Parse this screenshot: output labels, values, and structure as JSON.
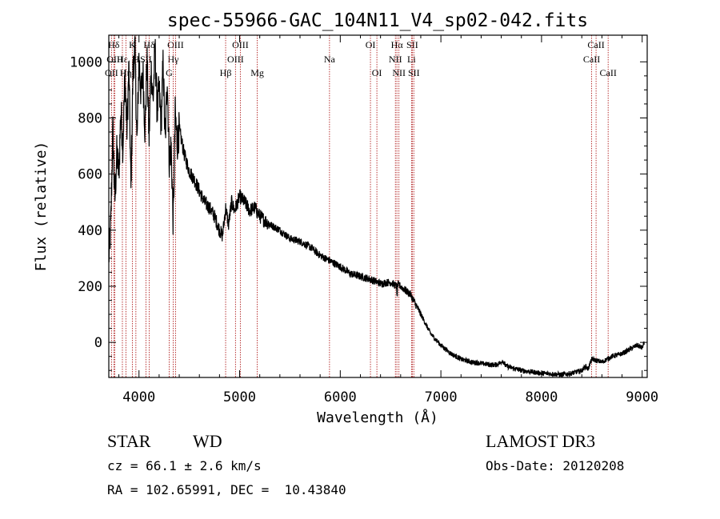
{
  "chart_data": {
    "type": "line",
    "title": "spec-55966-GAC_104N11_V4_sp02-042.fits",
    "xlabel": "Wavelength (Å)",
    "ylabel": "Flux (relative)",
    "xlim": [
      3700,
      9050
    ],
    "ylim": [
      -125,
      1095
    ],
    "x_ticks": [
      4000,
      5000,
      6000,
      7000,
      8000,
      9000
    ],
    "y_ticks": [
      0,
      200,
      400,
      600,
      800,
      1000
    ],
    "grid": false,
    "series": [
      {
        "name": "flux",
        "x": [
          3700,
          3720,
          3740,
          3760,
          3780,
          3800,
          3820,
          3840,
          3860,
          3880,
          3900,
          3920,
          3940,
          3960,
          3980,
          4000,
          4020,
          4040,
          4060,
          4080,
          4100,
          4120,
          4140,
          4160,
          4180,
          4200,
          4220,
          4240,
          4260,
          4280,
          4300,
          4320,
          4340,
          4360,
          4380,
          4400,
          4450,
          4500,
          4550,
          4600,
          4650,
          4700,
          4750,
          4800,
          4830,
          4861,
          4890,
          4920,
          4950,
          5000,
          5050,
          5100,
          5150,
          5200,
          5300,
          5400,
          5500,
          5600,
          5700,
          5800,
          5900,
          6000,
          6100,
          6200,
          6300,
          6400,
          6500,
          6560,
          6563,
          6570,
          6600,
          6700,
          6800,
          6900,
          7000,
          7100,
          7200,
          7300,
          7400,
          7500,
          7550,
          7600,
          7610,
          7650,
          7700,
          7800,
          7900,
          8000,
          8100,
          8200,
          8300,
          8400,
          8440,
          8460,
          8500,
          8600,
          8700,
          8800,
          8900,
          8950,
          9000,
          9020
        ],
        "y": [
          300,
          420,
          760,
          500,
          680,
          600,
          830,
          700,
          950,
          760,
          980,
          540,
          960,
          1050,
          700,
          1020,
          880,
          960,
          750,
          1010,
          720,
          980,
          860,
          1050,
          820,
          900,
          780,
          1000,
          700,
          960,
          650,
          700,
          420,
          810,
          710,
          760,
          670,
          610,
          580,
          540,
          500,
          480,
          450,
          400,
          380,
          480,
          420,
          500,
          470,
          520,
          500,
          470,
          480,
          450,
          420,
          400,
          370,
          360,
          340,
          310,
          290,
          270,
          245,
          235,
          225,
          210,
          215,
          200,
          150,
          205,
          200,
          170,
          100,
          30,
          -10,
          -40,
          -60,
          -70,
          -75,
          -80,
          -80,
          -70,
          -65,
          -85,
          -90,
          -100,
          -105,
          -110,
          -112,
          -115,
          -110,
          -100,
          -85,
          -95,
          -60,
          -70,
          -50,
          -40,
          -20,
          -10,
          -20,
          0
        ]
      }
    ],
    "line_markers": [
      {
        "label": "Hδ",
        "x": 3750,
        "row": 1
      },
      {
        "label": "OIII",
        "x": 3760,
        "row": 2
      },
      {
        "label": "OII",
        "x": 3727,
        "row": 3
      },
      {
        "label": "Hε",
        "x": 3835,
        "row": 2
      },
      {
        "label": "Hη",
        "x": 3870,
        "row": 3
      },
      {
        "label": "K",
        "x": 3934,
        "row": 1
      },
      {
        "label": "H",
        "x": 3969,
        "row": 2
      },
      {
        "label": "Hδ",
        "x": 4102,
        "row": 1
      },
      {
        "label": "SII",
        "x": 4069,
        "row": 2
      },
      {
        "label": "OIII",
        "x": 4363,
        "row": 1
      },
      {
        "label": "Hγ",
        "x": 4340,
        "row": 2
      },
      {
        "label": "G",
        "x": 4300,
        "row": 3
      },
      {
        "label": "Hβ",
        "x": 4861,
        "row": 3
      },
      {
        "label": "OIII",
        "x": 5007,
        "row": 1
      },
      {
        "label": "OIII",
        "x": 4959,
        "row": 2
      },
      {
        "label": "Mg",
        "x": 5175,
        "row": 3
      },
      {
        "label": "Na",
        "x": 5893,
        "row": 2
      },
      {
        "label": "OI",
        "x": 6300,
        "row": 1
      },
      {
        "label": "OI",
        "x": 6364,
        "row": 3
      },
      {
        "label": "Hα",
        "x": 6563,
        "row": 1
      },
      {
        "label": "NII",
        "x": 6548,
        "row": 2
      },
      {
        "label": "NII",
        "x": 6583,
        "row": 3
      },
      {
        "label": "SII",
        "x": 6716,
        "row": 1
      },
      {
        "label": "Li",
        "x": 6708,
        "row": 2
      },
      {
        "label": "SII",
        "x": 6731,
        "row": 3
      },
      {
        "label": "CaII",
        "x": 8542,
        "row": 1
      },
      {
        "label": "CaII",
        "x": 8498,
        "row": 2
      },
      {
        "label": "CaII",
        "x": 8662,
        "row": 3
      }
    ]
  },
  "info": {
    "class_label": "STAR",
    "subclass": "WD",
    "survey": "LAMOST DR3",
    "redshift_line": "cz = 66.1 ± 2.6 km/s",
    "obs_date": "Obs-Date: 20120208",
    "coords": "RA = 102.65991, DEC =  10.43840"
  },
  "colors": {
    "line": "#000000",
    "marker": "#b22222",
    "background": "#ffffff"
  }
}
